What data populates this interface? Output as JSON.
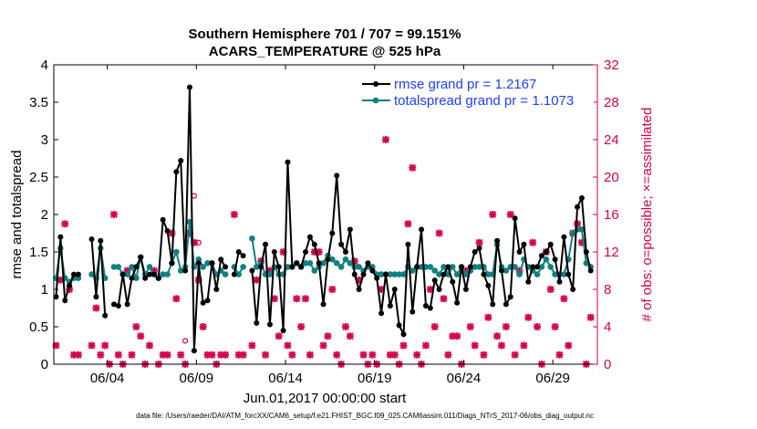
{
  "chart_data": {
    "type": "line",
    "title_line1": "Southern Hemisphere 701 / 707 = 99.151%",
    "title_line2": "ACARS_TEMPERATURE @ 525 hPa",
    "xlabel": "Jun.01,2017 00:00:00 start",
    "ylabel": "rmse and totalspread",
    "y2label": "# of obs: o=possible; ×=assimilated",
    "footer": "data file: /Users/raeder/DAI/ATM_forcXX/CAM6_setup/f.e21.FHIST_BGC.f09_025.CAM6assim.011/Diags_NTrS_2017-06/obs_diag_output.nc",
    "xlim": [
      1,
      31.5
    ],
    "ylim": [
      0,
      4
    ],
    "y2lim": [
      0,
      32
    ],
    "x_ticks": [
      4,
      9,
      14,
      19,
      24,
      29
    ],
    "x_tick_labels": [
      "06/04",
      "06/09",
      "06/14",
      "06/19",
      "06/24",
      "06/29"
    ],
    "y_ticks": [
      0,
      0.5,
      1,
      1.5,
      2,
      2.5,
      3,
      3.5,
      4
    ],
    "y_tick_labels": [
      "0",
      "0.5",
      "1",
      "1.5",
      "2",
      "2.5",
      "3",
      "3.5",
      "4"
    ],
    "y2_ticks": [
      0,
      4,
      8,
      12,
      16,
      20,
      24,
      28,
      32
    ],
    "y2_tick_labels": [
      "0",
      "4",
      "8",
      "12",
      "16",
      "20",
      "24",
      "28",
      "32"
    ],
    "colors": {
      "rmse": "#000000",
      "spread": "#108080",
      "obs": "#d6004e",
      "legend_text": "#1f3fff"
    },
    "series": [
      {
        "name": "rmse grand pr = 1.2167",
        "x": [
          1.125,
          1.375,
          1.625,
          1.875,
          2.125,
          2.375,
          3.125,
          3.375,
          3.625,
          3.875,
          4.375,
          4.625,
          4.875,
          5.125,
          5.375,
          5.625,
          5.875,
          6.125,
          6.375,
          6.625,
          6.875,
          7.125,
          7.375,
          7.625,
          7.875,
          8.125,
          8.375,
          8.625,
          8.875,
          9.125,
          9.375,
          9.625,
          9.875,
          10.125,
          10.375,
          10.625,
          11.125,
          11.375,
          11.625,
          12.125,
          12.375,
          12.625,
          12.875,
          13.125,
          13.375,
          13.625,
          13.875,
          14.125,
          14.375,
          14.625,
          14.875,
          15.125,
          15.375,
          15.625,
          15.875,
          16.125,
          16.375,
          16.625,
          16.875,
          17.125,
          17.375,
          17.625,
          17.875,
          18.125,
          18.375,
          18.625,
          18.875,
          19.125,
          19.375,
          19.625,
          19.875,
          20.125,
          20.375,
          20.625,
          20.875,
          21.125,
          21.375,
          21.625,
          21.875,
          22.125,
          22.375,
          22.625,
          22.875,
          23.125,
          23.375,
          23.625,
          23.875,
          24.125,
          24.375,
          24.625,
          24.875,
          25.125,
          25.375,
          25.625,
          25.875,
          26.125,
          26.375,
          26.625,
          26.875,
          27.125,
          27.375,
          27.625,
          27.875,
          28.125,
          28.375,
          28.625,
          28.875,
          29.125,
          29.375,
          29.625,
          29.875,
          30.125,
          30.375,
          30.625,
          30.875,
          31.125
        ],
        "y": [
          0.9,
          1.7,
          0.85,
          1.05,
          1.2,
          1.2,
          1.67,
          0.9,
          1.65,
          0.65,
          0.8,
          0.78,
          1.2,
          0.8,
          1.15,
          1.3,
          1.43,
          1.15,
          1.2,
          1.2,
          1.15,
          1.93,
          1.78,
          1.35,
          2.57,
          2.72,
          1.25,
          3.7,
          0.18,
          1.35,
          0.82,
          0.85,
          1.35,
          1.0,
          1.4,
          1.3,
          1.2,
          1.5,
          1.45,
          1.25,
          0.55,
          1.3,
          1.6,
          0.53,
          1.5,
          1.3,
          0.45,
          2.7,
          1.3,
          1.35,
          1.3,
          1.5,
          1.7,
          1.6,
          1.35,
          0.8,
          1.4,
          1.75,
          2.52,
          1.6,
          1.5,
          1.8,
          1.2,
          1.0,
          1.2,
          1.35,
          1.25,
          1.15,
          0.68,
          1.2,
          0.78,
          1.0,
          0.52,
          0.4,
          1.6,
          0.7,
          1.3,
          1.8,
          0.78,
          0.75,
          1.12,
          1.0,
          1.2,
          1.3,
          1.1,
          0.82,
          1.3,
          1.0,
          1.3,
          1.5,
          1.55,
          1.2,
          1.05,
          0.8,
          1.65,
          1.25,
          0.8,
          0.9,
          1.95,
          1.5,
          1.6,
          1.1,
          1.3,
          1.3,
          1.45,
          1.5,
          1.6,
          1.4,
          1.1,
          1.7,
          1.2,
          1.0,
          2.1,
          2.22,
          1.5,
          1.25
        ],
        "marker": "asterisk"
      },
      {
        "name": "totalspread grand pr = 1.1073",
        "x": [
          1.125,
          1.375,
          1.625,
          1.875,
          2.125,
          2.375,
          3.125,
          3.375,
          3.625,
          3.875,
          4.375,
          4.625,
          4.875,
          5.125,
          5.375,
          5.625,
          5.875,
          6.125,
          6.375,
          6.625,
          6.875,
          7.125,
          7.375,
          7.625,
          7.875,
          8.125,
          8.375,
          8.625,
          8.875,
          9.125,
          9.375,
          9.625,
          9.875,
          10.125,
          10.375,
          10.625,
          11.125,
          11.375,
          11.625,
          12.125,
          12.375,
          12.625,
          12.875,
          13.125,
          13.375,
          13.625,
          13.875,
          14.125,
          14.375,
          14.625,
          14.875,
          15.125,
          15.375,
          15.625,
          15.875,
          16.125,
          16.375,
          16.625,
          16.875,
          17.125,
          17.375,
          17.625,
          17.875,
          18.125,
          18.375,
          18.625,
          18.875,
          19.125,
          19.375,
          19.625,
          19.875,
          20.125,
          20.375,
          20.625,
          20.875,
          21.125,
          21.375,
          21.625,
          21.875,
          22.125,
          22.375,
          22.625,
          22.875,
          23.125,
          23.375,
          23.625,
          23.875,
          24.125,
          24.375,
          24.625,
          24.875,
          25.125,
          25.375,
          25.625,
          25.875,
          26.125,
          26.375,
          26.625,
          26.875,
          27.125,
          27.375,
          27.625,
          27.875,
          28.125,
          28.375,
          28.625,
          28.875,
          29.125,
          29.375,
          29.625,
          29.875,
          30.125,
          30.375,
          30.625,
          30.875,
          31.125
        ],
        "y": [
          1.15,
          1.55,
          1.15,
          1.1,
          1.15,
          1.15,
          1.2,
          1.15,
          1.55,
          1.15,
          1.3,
          1.3,
          1.2,
          1.2,
          1.3,
          1.15,
          1.43,
          1.2,
          1.3,
          1.2,
          1.15,
          1.2,
          1.2,
          1.35,
          1.5,
          1.25,
          1.3,
          1.9,
          1.3,
          1.4,
          1.3,
          1.35,
          1.35,
          1.2,
          1.25,
          1.2,
          1.3,
          1.2,
          1.3,
          1.68,
          1.3,
          1.35,
          1.2,
          1.2,
          1.3,
          1.2,
          1.2,
          1.3,
          1.3,
          1.35,
          1.3,
          1.35,
          1.35,
          1.25,
          1.3,
          1.35,
          1.45,
          1.4,
          1.35,
          1.3,
          1.4,
          1.35,
          1.3,
          1.3,
          1.25,
          1.3,
          1.3,
          1.2,
          1.2,
          1.2,
          1.2,
          1.2,
          1.2,
          1.2,
          1.3,
          1.25,
          1.3,
          1.3,
          1.3,
          1.3,
          1.25,
          1.2,
          1.3,
          1.2,
          1.3,
          1.2,
          1.3,
          1.2,
          1.25,
          1.3,
          1.3,
          1.3,
          1.2,
          1.2,
          1.6,
          1.3,
          1.25,
          1.3,
          1.3,
          1.2,
          1.4,
          1.3,
          1.25,
          1.2,
          1.3,
          1.4,
          1.3,
          1.2,
          1.2,
          1.2,
          1.4,
          1.75,
          1.8,
          1.8,
          1.35,
          1.3
        ],
        "marker": "circle"
      }
    ],
    "obs_assimilated": {
      "x": [
        1.125,
        1.375,
        1.625,
        1.875,
        2.125,
        2.375,
        3.125,
        3.375,
        3.625,
        3.875,
        4.125,
        4.375,
        4.625,
        4.875,
        5.125,
        5.375,
        5.625,
        5.875,
        6.125,
        6.375,
        6.625,
        6.875,
        7.125,
        7.375,
        7.625,
        7.875,
        8.125,
        8.375,
        8.625,
        8.875,
        9.125,
        9.375,
        9.625,
        9.875,
        10.125,
        10.375,
        10.625,
        11.125,
        11.375,
        11.625,
        12.125,
        12.375,
        12.625,
        12.875,
        13.125,
        13.375,
        13.625,
        13.875,
        14.125,
        14.375,
        14.625,
        14.875,
        15.125,
        15.375,
        15.625,
        15.875,
        16.125,
        16.375,
        16.625,
        16.875,
        17.125,
        17.375,
        17.625,
        17.875,
        18.125,
        18.375,
        18.625,
        18.875,
        19.125,
        19.375,
        19.625,
        19.875,
        20.125,
        20.375,
        20.625,
        20.875,
        21.125,
        21.375,
        21.625,
        21.875,
        22.125,
        22.375,
        22.625,
        22.875,
        23.125,
        23.375,
        23.625,
        23.875,
        24.125,
        24.375,
        24.625,
        24.875,
        25.125,
        25.375,
        25.625,
        25.875,
        26.125,
        26.375,
        26.625,
        26.875,
        27.125,
        27.375,
        27.625,
        27.875,
        28.125,
        28.375,
        28.625,
        28.875,
        29.125,
        29.375,
        29.625,
        29.875,
        30.125,
        30.375,
        30.625,
        30.875,
        31.125
      ],
      "y": [
        2,
        9,
        15,
        8,
        1,
        1,
        2,
        6,
        1,
        2,
        0,
        16,
        1,
        0,
        10,
        1,
        4,
        3,
        0,
        2,
        10,
        0,
        1,
        1,
        14,
        7,
        1,
        0,
        14,
        13,
        9,
        4,
        1,
        1,
        0,
        1,
        1,
        16,
        1,
        1,
        2,
        9,
        11,
        1,
        10,
        7,
        3,
        12,
        2,
        1,
        7,
        4,
        7,
        1,
        12,
        12,
        2,
        3,
        8,
        1,
        0,
        4,
        3,
        11,
        9,
        1,
        0,
        1,
        0,
        8,
        24,
        1,
        1,
        0,
        2,
        15,
        21,
        1,
        0,
        2,
        8,
        4,
        14,
        7,
        1,
        3,
        3,
        0,
        10,
        4,
        2,
        13,
        1,
        5,
        16,
        3,
        2,
        4,
        16,
        1,
        10,
        2,
        5,
        13,
        4,
        0,
        12,
        8,
        4,
        1,
        7,
        2,
        14,
        15,
        13,
        0,
        5
      ],
      "marker": "asterisk"
    },
    "obs_possible": {
      "x": [
        8.375,
        8.875,
        9.125
      ],
      "y": [
        2.5,
        18,
        13
      ],
      "marker": "circle"
    }
  },
  "legend": {
    "rmse": "rmse grand pr = 1.2167",
    "spread": "totalspread grand pr = 1.1073"
  }
}
